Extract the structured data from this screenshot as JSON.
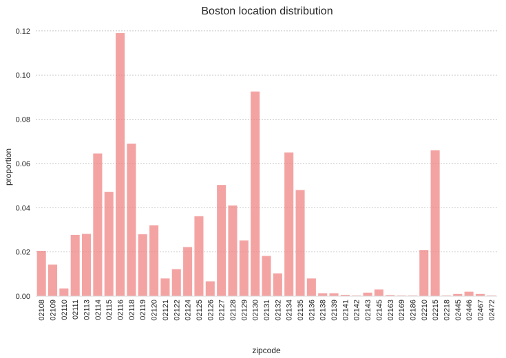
{
  "chart_data": {
    "type": "bar",
    "title": "Boston location distribution",
    "xlabel": "zipcode",
    "ylabel": "proportion",
    "ylim": [
      0,
      0.124
    ],
    "yticks": [
      "0.00",
      "0.02",
      "0.04",
      "0.06",
      "0.08",
      "0.10",
      "0.12"
    ],
    "grid": "horizontal dotted",
    "bar_color": "#f08080",
    "categories": [
      "02108",
      "02109",
      "02110",
      "02111",
      "02113",
      "02114",
      "02115",
      "02116",
      "02118",
      "02119",
      "02120",
      "02121",
      "02122",
      "02124",
      "02125",
      "02126",
      "02127",
      "02128",
      "02129",
      "02130",
      "02131",
      "02132",
      "02134",
      "02135",
      "02136",
      "02138",
      "02139",
      "02141",
      "02142",
      "02143",
      "02145",
      "02163",
      "02169",
      "02186",
      "02210",
      "02215",
      "02218",
      "02445",
      "02446",
      "02467",
      "02472"
    ],
    "values": [
      0.0205,
      0.0143,
      0.0035,
      0.0277,
      0.0282,
      0.0645,
      0.0472,
      0.119,
      0.069,
      0.028,
      0.032,
      0.008,
      0.0122,
      0.0222,
      0.0362,
      0.0067,
      0.0503,
      0.041,
      0.0252,
      0.0925,
      0.0182,
      0.0103,
      0.065,
      0.048,
      0.008,
      0.0013,
      0.0013,
      0.0006,
      0.0003,
      0.0016,
      0.003,
      0.0005,
      0.0003,
      0.0003,
      0.0208,
      0.066,
      0.0003,
      0.001,
      0.002,
      0.001,
      0.0003
    ]
  }
}
